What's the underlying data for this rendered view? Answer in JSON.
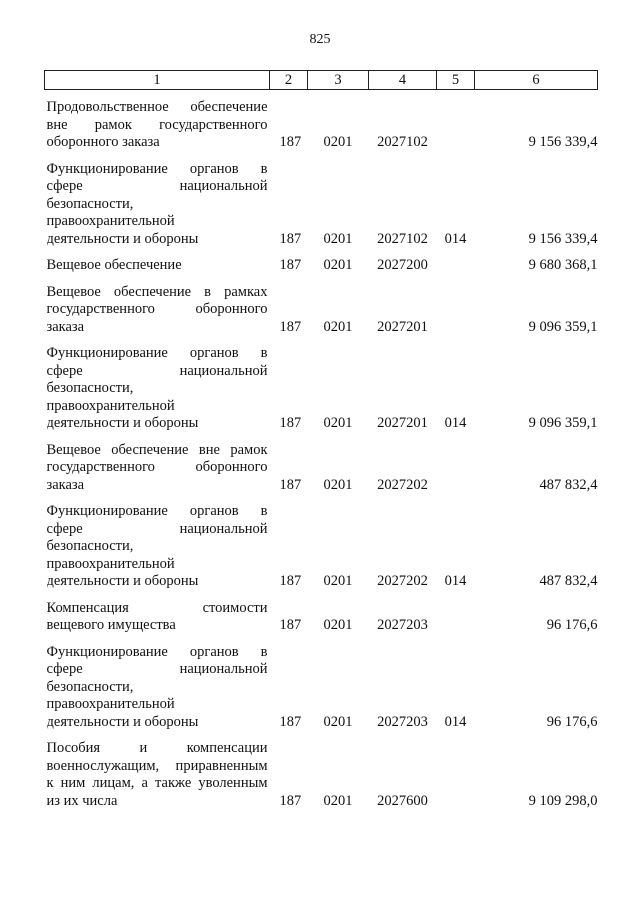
{
  "page_number": "825",
  "table": {
    "headers": [
      "1",
      "2",
      "3",
      "4",
      "5",
      "6"
    ],
    "rows": [
      {
        "description": [
          "Продовольственное обеспечение",
          "вне рамок государственного",
          "оборонного заказа"
        ],
        "col2": "187",
        "col3": "0201",
        "col4": "2027102",
        "col5": "",
        "col6": "9 156 339,4"
      },
      {
        "description": [
          "Функционирование органов в",
          "сфере национальной",
          "безопасности,",
          "правоохранительной",
          "деятельности и обороны"
        ],
        "col2": "187",
        "col3": "0201",
        "col4": "2027102",
        "col5": "014",
        "col6": "9 156 339,4"
      },
      {
        "description": [
          "Вещевое обеспечение"
        ],
        "col2": "187",
        "col3": "0201",
        "col4": "2027200",
        "col5": "",
        "col6": "9 680 368,1"
      },
      {
        "description": [
          "Вещевое обеспечение в рамках",
          "государственного оборонного",
          "заказа"
        ],
        "col2": "187",
        "col3": "0201",
        "col4": "2027201",
        "col5": "",
        "col6": "9 096 359,1"
      },
      {
        "description": [
          "Функционирование органов в",
          "сфере национальной",
          "безопасности,",
          "правоохранительной",
          "деятельности и обороны"
        ],
        "col2": "187",
        "col3": "0201",
        "col4": "2027201",
        "col5": "014",
        "col6": "9 096 359,1"
      },
      {
        "description": [
          "Вещевое обеспечение вне рамок",
          "государственного оборонного",
          "заказа"
        ],
        "col2": "187",
        "col3": "0201",
        "col4": "2027202",
        "col5": "",
        "col6": "487 832,4"
      },
      {
        "description": [
          "Функционирование органов в",
          "сфере национальной",
          "безопасности,",
          "правоохранительной",
          "деятельности и обороны"
        ],
        "col2": "187",
        "col3": "0201",
        "col4": "2027202",
        "col5": "014",
        "col6": "487 832,4"
      },
      {
        "description": [
          "Компенсация стоимости",
          "вещевого имущества"
        ],
        "col2": "187",
        "col3": "0201",
        "col4": "2027203",
        "col5": "",
        "col6": "96 176,6"
      },
      {
        "description": [
          "Функционирование органов в",
          "сфере национальной",
          "безопасности,",
          "правоохранительной",
          "деятельности и обороны"
        ],
        "col2": "187",
        "col3": "0201",
        "col4": "2027203",
        "col5": "014",
        "col6": "96 176,6"
      },
      {
        "description": [
          "Пособия и компенсации",
          "военнослужащим, приравненным",
          "к ним лицам, а также уволенным",
          "из их числа"
        ],
        "col2": "187",
        "col3": "0201",
        "col4": "2027600",
        "col5": "",
        "col6": "9 109 298,0"
      }
    ]
  }
}
